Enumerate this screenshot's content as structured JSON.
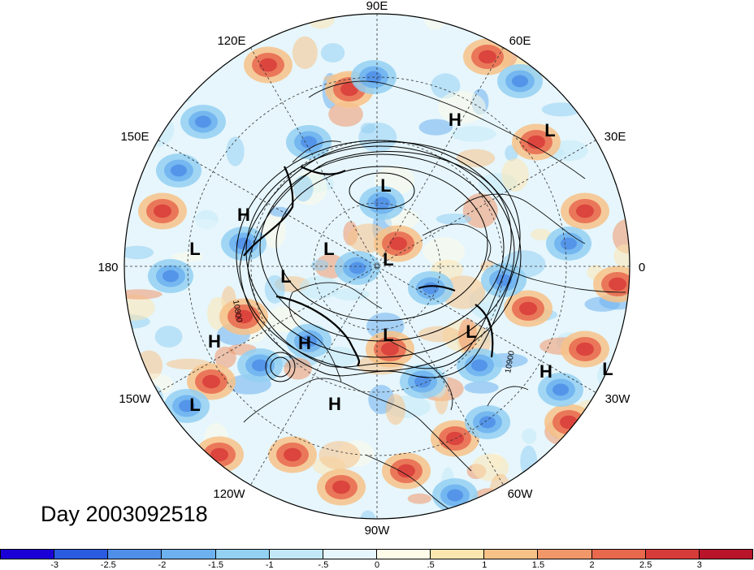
{
  "title": "Day 2003092518",
  "longitude_labels": [
    "90E",
    "60E",
    "30E",
    "0",
    "30W",
    "60W",
    "90W",
    "120W",
    "150W",
    "180",
    "150E",
    "120E"
  ],
  "contour_labels": [
    "10800",
    "10900"
  ],
  "pressure_centers": [
    "H",
    "L",
    "L",
    "H",
    "L",
    "L",
    "L",
    "L",
    "L",
    "H",
    "H",
    "L",
    "L",
    "H",
    "H",
    "L",
    "L"
  ],
  "colorbar": {
    "colors": [
      "#1a00d6",
      "#2a5be0",
      "#4f8fe8",
      "#6db1ee",
      "#93d0f2",
      "#c3e9f8",
      "#e6f6fc",
      "#fefce8",
      "#fbe6b0",
      "#f7c288",
      "#f1976a",
      "#e8684e",
      "#d83c3a",
      "#b8142a"
    ],
    "tick_labels": [
      "-3",
      "-2.5",
      "-2",
      "-1.5",
      "-1",
      "-.5",
      "0",
      ".5",
      "1",
      "1.5",
      "2",
      "2.5",
      "3"
    ]
  }
}
